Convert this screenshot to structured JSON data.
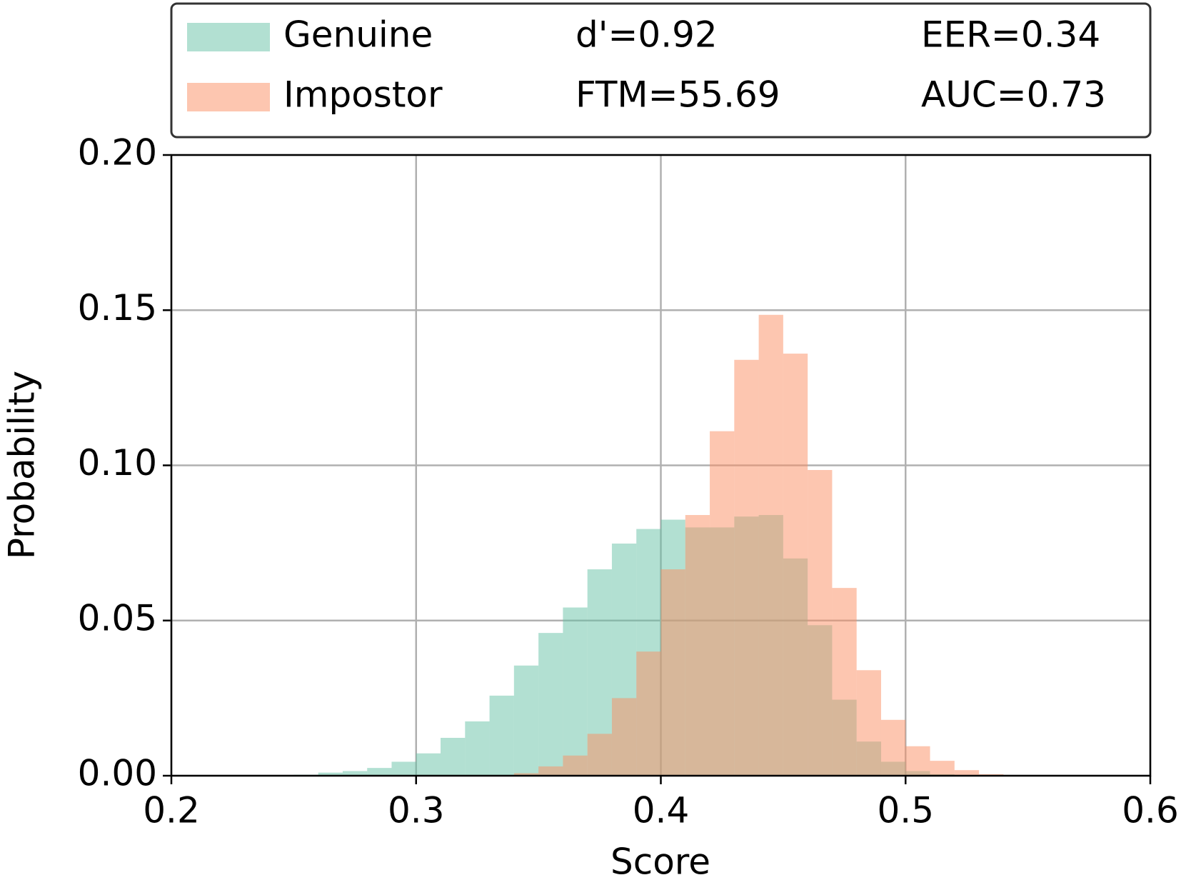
{
  "chart_data": {
    "type": "histogram",
    "xlabel": "Score",
    "ylabel": "Probability",
    "bins": [
      0.25,
      0.26,
      0.27,
      0.28,
      0.29,
      0.3,
      0.31,
      0.32,
      0.33,
      0.34,
      0.35,
      0.36,
      0.37,
      0.38,
      0.39,
      0.4,
      0.41,
      0.42,
      0.43,
      0.44,
      0.45,
      0.46,
      0.47,
      0.48,
      0.49,
      0.5,
      0.51,
      0.52,
      0.53,
      0.54,
      0.55
    ],
    "series": [
      {
        "name": "Genuine",
        "color": "#66c2a5",
        "values": [
          0.0003,
          0.001,
          0.0015,
          0.0025,
          0.0045,
          0.0072,
          0.0122,
          0.0175,
          0.0258,
          0.0355,
          0.046,
          0.0542,
          0.0665,
          0.0748,
          0.0795,
          0.0825,
          0.08,
          0.08,
          0.0835,
          0.084,
          0.07,
          0.0485,
          0.0245,
          0.011,
          0.0045,
          0.0015,
          0.0005,
          0.0002,
          0,
          0
        ]
      },
      {
        "name": "Impostor",
        "color": "#fc8d62",
        "values": [
          0,
          0,
          0,
          0,
          0,
          0,
          0,
          0,
          0.0002,
          0.0008,
          0.003,
          0.0065,
          0.0135,
          0.025,
          0.04,
          0.0665,
          0.084,
          0.111,
          0.134,
          0.1485,
          0.136,
          0.0985,
          0.0605,
          0.034,
          0.018,
          0.0095,
          0.0048,
          0.0018,
          0.0005,
          0.0001
        ]
      }
    ],
    "annotations": [
      "d'=0.92",
      "EER=0.34",
      "FTM=55.69",
      "AUC=0.73"
    ],
    "xlim": [
      0.2,
      0.6
    ],
    "xticks": [
      0.2,
      0.3,
      0.4,
      0.5,
      0.6
    ],
    "ylim": [
      0,
      0.2
    ],
    "yticks": [
      {
        "value": 0,
        "label": "0.00"
      },
      {
        "value": 0.05,
        "label": "0.05"
      },
      {
        "value": 0.1,
        "label": "0.10"
      },
      {
        "value": 0.15,
        "label": "0.15"
      },
      {
        "value": 0.2,
        "label": "0.20"
      }
    ],
    "grid": true,
    "legend": "top"
  }
}
